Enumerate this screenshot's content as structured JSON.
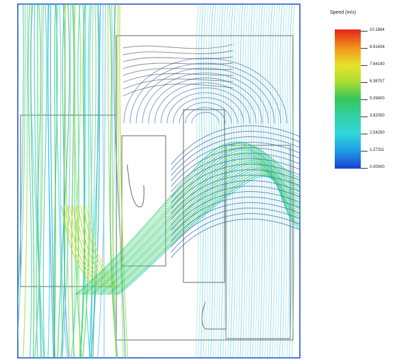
{
  "legend": {
    "title": "Speed (m/s)",
    "ticks": [
      "10.1864",
      "8.91408",
      "7.64190",
      "6.36757",
      "5.09400",
      "3.82050",
      "2.54250",
      "1.27311",
      "0.00000"
    ],
    "colors": [
      "#e4241a",
      "#f39a1b",
      "#e6e32a",
      "#a7dc33",
      "#33c65a",
      "#33d0a5",
      "#2fd6db",
      "#1f9ee6",
      "#1b3fd1"
    ]
  },
  "colors": {
    "frame": "#4a78d8",
    "outline": "#555555"
  }
}
